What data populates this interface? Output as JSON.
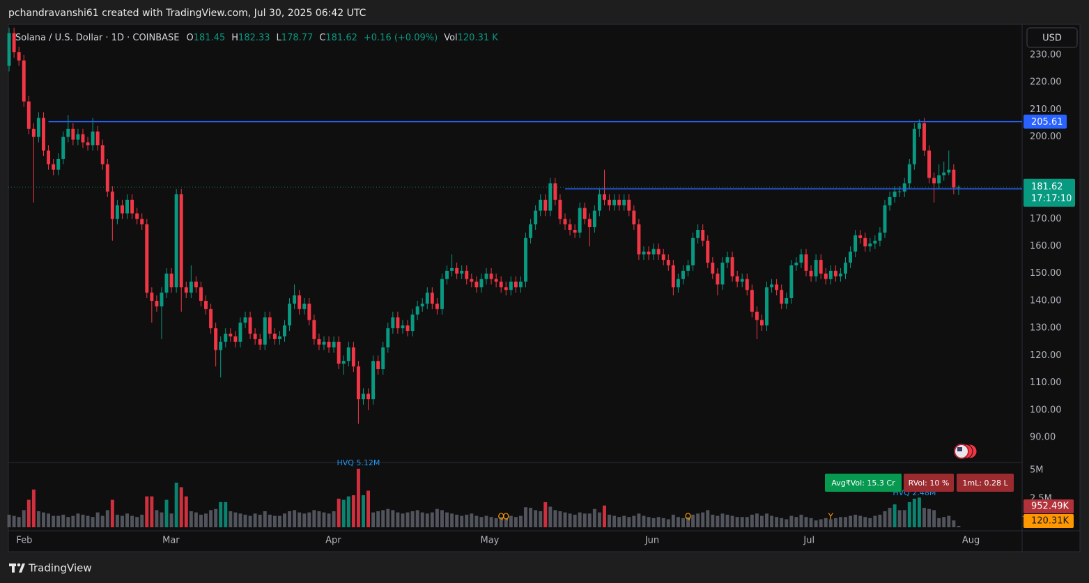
{
  "header": "pchandravanshi61 created with TradingView.com, Jul 30, 2025 06:42 UTC",
  "footer": "TradingView",
  "currency": "USD",
  "chart_data": {
    "type": "candlestick",
    "legend": {
      "symbol": "Solana / U.S. Dollar · 1D · COINBASE",
      "keys": [
        "O",
        "H",
        "L",
        "C",
        "Vol"
      ],
      "change": "+0.16 (+0.09%)",
      "volume_label": "120.31 K"
    },
    "open": [
      226,
      238,
      231,
      228,
      213,
      203,
      200,
      207,
      195,
      190,
      188,
      192,
      200,
      203,
      199,
      201,
      198,
      197,
      202,
      197,
      190,
      180,
      170,
      175,
      172,
      177,
      172,
      170,
      168,
      143,
      140,
      138,
      143,
      150,
      145,
      179,
      145,
      143,
      147,
      145,
      140,
      137,
      130,
      122,
      125,
      128,
      127,
      125,
      132,
      134,
      128,
      126,
      124,
      134,
      128,
      126,
      127,
      131,
      139,
      142,
      137,
      139,
      133,
      126,
      124,
      125,
      123,
      125,
      117,
      118,
      123,
      116,
      104,
      106,
      104,
      118,
      115,
      123,
      130,
      134,
      130,
      131,
      129,
      135,
      138,
      139,
      143,
      139,
      137,
      148,
      151,
      152,
      150,
      151,
      148,
      147,
      145,
      148,
      150,
      148,
      147,
      145,
      144,
      147,
      145,
      147,
      163,
      168,
      173,
      177,
      173,
      183,
      177,
      170,
      168,
      166,
      165,
      174,
      170,
      167,
      173,
      179,
      177,
      175,
      177,
      175,
      177,
      173,
      168,
      157,
      158,
      157,
      159,
      157,
      155,
      153,
      145,
      148,
      151,
      153,
      163,
      166,
      162,
      154,
      150,
      146,
      154,
      156,
      149,
      147,
      148,
      144,
      136,
      133,
      131,
      145,
      146,
      144,
      139,
      141,
      153,
      154,
      157,
      151,
      149,
      155,
      150,
      148,
      151,
      149,
      150,
      154,
      158,
      164,
      163,
      160,
      161,
      162,
      165,
      175,
      178,
      180,
      180,
      183,
      190,
      203,
      205,
      195,
      185,
      183,
      186,
      187,
      188,
      181.45
    ],
    "high": [
      240,
      240,
      233,
      230,
      215,
      205,
      209,
      209,
      197,
      192,
      194,
      202,
      208,
      205,
      203,
      203,
      200,
      207,
      204,
      199,
      192,
      182,
      177,
      177,
      179,
      179,
      174,
      172,
      170,
      145,
      142,
      145,
      152,
      152,
      181,
      181,
      147,
      153,
      149,
      147,
      142,
      139,
      132,
      127,
      130,
      130,
      129,
      134,
      136,
      136,
      130,
      128,
      136,
      136,
      130,
      129,
      133,
      141,
      146,
      144,
      141,
      141,
      135,
      128,
      127,
      127,
      127,
      127,
      120,
      125,
      125,
      118,
      108,
      108,
      120,
      120,
      125,
      132,
      136,
      136,
      133,
      133,
      137,
      140,
      141,
      145,
      145,
      141,
      150,
      153,
      157,
      154,
      153,
      153,
      150,
      149,
      150,
      152,
      152,
      150,
      149,
      147,
      149,
      149,
      149,
      165,
      170,
      175,
      179,
      179,
      185,
      185,
      179,
      172,
      170,
      168,
      176,
      176,
      172,
      175,
      181,
      188,
      179,
      179,
      179,
      179,
      179,
      175,
      170,
      160,
      160,
      161,
      161,
      159,
      157,
      155,
      150,
      153,
      155,
      165,
      168,
      168,
      164,
      156,
      152,
      156,
      158,
      158,
      151,
      150,
      150,
      146,
      138,
      135,
      147,
      148,
      148,
      146,
      143,
      155,
      156,
      159,
      159,
      153,
      157,
      157,
      152,
      153,
      153,
      152,
      156,
      160,
      166,
      166,
      165,
      163,
      164,
      167,
      177,
      180,
      182,
      182,
      185,
      192,
      205,
      206.4,
      207,
      197,
      187,
      190,
      191,
      195,
      190,
      182.33
    ],
    "low": [
      224,
      229,
      226,
      211,
      201,
      176,
      198,
      193,
      188,
      186,
      186,
      190,
      198,
      197,
      197,
      196,
      195,
      195,
      195,
      188,
      178,
      162,
      168,
      170,
      170,
      170,
      168,
      166,
      141,
      132,
      136,
      126,
      141,
      143,
      143,
      136,
      141,
      141,
      143,
      138,
      135,
      128,
      116,
      112,
      123,
      125,
      123,
      123,
      130,
      126,
      124,
      122,
      122,
      126,
      124,
      124,
      125,
      129,
      137,
      135,
      135,
      131,
      124,
      122,
      122,
      121,
      121,
      115,
      113,
      116,
      114,
      95,
      102,
      100,
      102,
      113,
      113,
      121,
      128,
      128,
      128,
      127,
      127,
      133,
      136,
      137,
      137,
      135,
      135,
      146,
      149,
      148,
      148,
      146,
      145,
      143,
      143,
      146,
      146,
      145,
      143,
      142,
      142,
      143,
      143,
      145,
      161,
      166,
      171,
      171,
      171,
      175,
      168,
      166,
      164,
      163,
      163,
      168,
      160,
      165,
      171,
      175,
      173,
      173,
      173,
      173,
      171,
      166,
      155,
      155,
      155,
      155,
      155,
      153,
      151,
      142,
      143,
      146,
      149,
      151,
      161,
      160,
      152,
      148,
      142,
      144,
      152,
      147,
      145,
      145,
      142,
      134,
      126,
      129,
      129,
      143,
      142,
      137,
      137,
      139,
      151,
      152,
      149,
      147,
      147,
      148,
      146,
      146,
      147,
      147,
      148,
      152,
      156,
      161,
      158,
      158,
      159,
      160,
      163,
      173,
      176,
      178,
      178,
      181,
      188,
      200,
      193,
      183,
      176,
      181,
      184,
      186,
      179,
      178.77
    ],
    "close": [
      238,
      231,
      228,
      213,
      203,
      200,
      207,
      195,
      190,
      188,
      192,
      200,
      203,
      199,
      201,
      198,
      197,
      202,
      197,
      190,
      180,
      170,
      175,
      172,
      177,
      172,
      170,
      168,
      143,
      140,
      138,
      143,
      150,
      145,
      179,
      145,
      143,
      147,
      145,
      140,
      137,
      130,
      122,
      125,
      128,
      127,
      125,
      132,
      134,
      128,
      126,
      124,
      134,
      128,
      126,
      127,
      131,
      139,
      142,
      137,
      139,
      133,
      126,
      124,
      125,
      123,
      125,
      117,
      118,
      123,
      116,
      104,
      106,
      104,
      118,
      115,
      123,
      130,
      134,
      130,
      131,
      129,
      135,
      138,
      139,
      143,
      139,
      137,
      148,
      151,
      152,
      150,
      151,
      148,
      147,
      145,
      148,
      150,
      148,
      147,
      145,
      144,
      147,
      145,
      147,
      163,
      168,
      173,
      177,
      173,
      183,
      177,
      170,
      168,
      166,
      165,
      174,
      170,
      167,
      173,
      179,
      177,
      175,
      177,
      175,
      177,
      173,
      168,
      157,
      158,
      157,
      159,
      157,
      155,
      153,
      145,
      148,
      151,
      153,
      163,
      166,
      162,
      154,
      150,
      146,
      154,
      156,
      149,
      147,
      148,
      144,
      136,
      133,
      131,
      145,
      146,
      144,
      139,
      141,
      153,
      154,
      157,
      151,
      149,
      155,
      150,
      148,
      151,
      149,
      150,
      154,
      158,
      164,
      163,
      160,
      161,
      162,
      165,
      175,
      178,
      180,
      180,
      183,
      190,
      203,
      205,
      195,
      185,
      183,
      186,
      187,
      188,
      181.45,
      181.62
    ],
    "volume": [
      1.1,
      1.0,
      0.9,
      1.5,
      2.4,
      3.3,
      1.4,
      1.3,
      1.2,
      1.0,
      1.0,
      1.1,
      0.9,
      1.0,
      1.2,
      1.1,
      1.0,
      0.9,
      1.3,
      1.0,
      1.5,
      2.4,
      1.1,
      1.0,
      1.2,
      1.0,
      0.9,
      1.1,
      2.7,
      2.7,
      1.5,
      1.3,
      2.4,
      1.2,
      3.9,
      3.5,
      2.7,
      1.4,
      1.3,
      1.1,
      1.2,
      1.5,
      1.6,
      2.2,
      2.2,
      1.4,
      1.3,
      1.2,
      1.1,
      1.0,
      1.2,
      1.1,
      1.4,
      1.1,
      1.0,
      1.0,
      1.2,
      1.4,
      1.5,
      1.3,
      1.2,
      1.3,
      1.5,
      1.4,
      1.3,
      1.2,
      1.4,
      2.5,
      2.4,
      2.7,
      2.8,
      5.12,
      2.8,
      3.2,
      1.3,
      1.4,
      1.5,
      1.6,
      1.5,
      1.3,
      1.2,
      1.3,
      1.4,
      1.5,
      1.3,
      1.2,
      1.3,
      1.6,
      1.5,
      1.3,
      1.2,
      1.1,
      1.0,
      1.1,
      1.2,
      1.0,
      0.9,
      1.0,
      0.9,
      0.8,
      0.9,
      0.8,
      1.0,
      0.9,
      1.0,
      1.75,
      1.7,
      1.5,
      1.4,
      2.2,
      1.8,
      1.5,
      1.4,
      1.3,
      1.2,
      1.1,
      1.3,
      1.2,
      1.2,
      1.6,
      1.3,
      1.9,
      1.1,
      1.0,
      0.9,
      1.0,
      0.9,
      1.0,
      1.2,
      1.0,
      0.9,
      0.8,
      0.9,
      0.8,
      0.7,
      1.1,
      0.9,
      0.8,
      0.9,
      1.1,
      1.2,
      1.3,
      1.5,
      1.1,
      1.0,
      1.2,
      1.1,
      1.0,
      0.9,
      0.9,
      0.9,
      1.1,
      1.2,
      1.0,
      1.2,
      1.0,
      0.9,
      0.8,
      0.7,
      1.0,
      0.9,
      1.1,
      0.9,
      0.8,
      0.6,
      0.7,
      0.8,
      0.7,
      0.8,
      0.9,
      0.9,
      1.0,
      1.1,
      1.0,
      0.9,
      0.8,
      1.0,
      1.1,
      1.4,
      1.7,
      2.0,
      1.5,
      1.5,
      2.2,
      2.5,
      2.6,
      1.7,
      1.6,
      1.5,
      0.8,
      0.9,
      1.0,
      0.6,
      0.12031
    ],
    "up_color": "#089981",
    "down_color": "#f23645",
    "volume_color": "#5d606b",
    "xlim": [
      -0.15,
      205.9
    ],
    "xticks": [
      {
        "value": 3.1,
        "label": "Feb"
      },
      {
        "value": 32.9,
        "label": "Mar"
      },
      {
        "value": 65.9,
        "label": "Apr"
      },
      {
        "value": 97.7,
        "label": "May"
      },
      {
        "value": 130.7,
        "label": "Jun"
      },
      {
        "value": 162.6,
        "label": "Jul"
      },
      {
        "value": 195.5,
        "label": "Aug"
      }
    ],
    "ylim": [
      81.1,
      241.2
    ],
    "yticks": [
      {
        "value": 90,
        "label": "90.00"
      },
      {
        "value": 100,
        "label": "100.00"
      },
      {
        "value": 110,
        "label": "110.00"
      },
      {
        "value": 120,
        "label": "120.00"
      },
      {
        "value": 130,
        "label": "130.00"
      },
      {
        "value": 140,
        "label": "140.00"
      },
      {
        "value": 150,
        "label": "150.00"
      },
      {
        "value": 160,
        "label": "160.00"
      },
      {
        "value": 170,
        "label": "170.00"
      },
      {
        "value": 200,
        "label": "200.00"
      },
      {
        "value": 210,
        "label": "210.00"
      },
      {
        "value": 220,
        "label": "220.00"
      },
      {
        "value": 230,
        "label": "230.00"
      }
    ],
    "volume_lim": [
      0,
      5.6
    ],
    "volume_ticks": [
      {
        "value": 5,
        "label": "5M"
      },
      {
        "value": 2.5,
        "label": "2.5M"
      }
    ],
    "levels": [
      {
        "value": 205.61,
        "from": 8,
        "color": "#2962ff"
      },
      {
        "value": 181,
        "from": 113,
        "color": "#2962ff"
      }
    ],
    "countdown": "17:17:10",
    "volume_marker": {
      "value": 0.95249,
      "label": "952.49K"
    },
    "last_volume_label": "120.31K",
    "annotations": [
      {
        "text": "HVQ 5.12M",
        "x": 71
      },
      {
        "text": "HVQ 2.48M",
        "x": 184
      },
      {
        "text": "Q",
        "x": 100
      },
      {
        "text": "Q",
        "x": 101
      },
      {
        "text": "Q",
        "x": 138
      },
      {
        "text": "Y",
        "x": 167
      }
    ],
    "badges": [
      "Avg₹Vol: 15.3 Cr",
      "RVol: 10 %",
      "1mL: 0.28 L"
    ],
    "grid": false
  }
}
